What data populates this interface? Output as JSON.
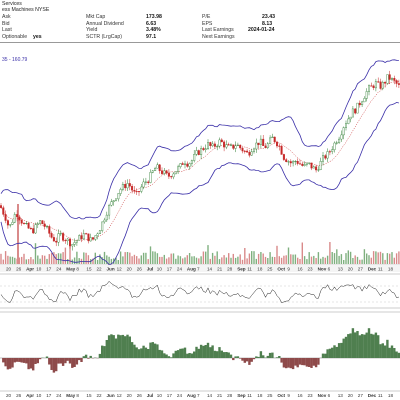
{
  "header": {
    "name_line1": "Services",
    "name_line2": "ess Machines NYSE",
    "ask_label": "Ask",
    "ask_value": "",
    "bid_label": "Bid",
    "bid_value": "",
    "last_label": "Last",
    "last_value": "",
    "optionable_label": "Optionable",
    "optionable_value": "yes",
    "mktcap_label": "Mkt Cap",
    "mktcap_value": "173.98",
    "dividend_label": "Annual Dividend",
    "dividend_value": "6.63",
    "yield_label": "Yield",
    "yield_value": "3.48%",
    "sctr_label": "SCTR (LrgCap)",
    "sctr_value": "97.1",
    "pe_label": "P/E",
    "pe_value": "23.43",
    "eps_label": "EPS",
    "eps_value": "8.13",
    "lastearn_label": "Last Earnings",
    "lastearn_value": "2024-01-24",
    "nextearn_label": "Next Earnings",
    "nextearn_value": "",
    "bb_label": "35 - 160.79"
  },
  "colors": {
    "up": "#2e7d32",
    "down": "#c62828",
    "band": "#3a2fa8",
    "ma": "#c62828",
    "vol_up": "#7fb07f",
    "vol_down": "#d98a8a",
    "osc_up": "#4f7f4f",
    "osc_down": "#8e4a4a"
  },
  "chart_data": {
    "type": "candlestick",
    "x_axis_labels": [
      "20",
      "26",
      "Apr",
      "10",
      "17",
      "24",
      "May",
      "8",
      "15",
      "22",
      "Jun",
      "12",
      "20",
      "26",
      "Jul",
      "10",
      "17",
      "24",
      "Aug",
      "7",
      "14",
      "21",
      "28",
      "Sep",
      "11",
      "18",
      "25",
      "Oct",
      "9",
      "16",
      "23",
      "Nov",
      "6",
      "13",
      "20",
      "27",
      "Dec",
      "11",
      "18"
    ],
    "price_path": [
      [
        0,
        128
      ],
      [
        3,
        126
      ],
      [
        6,
        124
      ],
      [
        9,
        121
      ],
      [
        12,
        123
      ],
      [
        16,
        126
      ],
      [
        20,
        124
      ],
      [
        24,
        122
      ],
      [
        28,
        121
      ],
      [
        32,
        120
      ],
      [
        35,
        121
      ],
      [
        40,
        123
      ],
      [
        44,
        122
      ],
      [
        48,
        120
      ],
      [
        52,
        118
      ],
      [
        56,
        117
      ],
      [
        60,
        119
      ],
      [
        64,
        118
      ],
      [
        68,
        117
      ],
      [
        72,
        116
      ],
      [
        76,
        117
      ],
      [
        80,
        118
      ],
      [
        84,
        119
      ],
      [
        88,
        118
      ],
      [
        92,
        117
      ],
      [
        96,
        119
      ],
      [
        100,
        121
      ],
      [
        104,
        124
      ],
      [
        108,
        127
      ],
      [
        112,
        129
      ],
      [
        116,
        131
      ],
      [
        120,
        133
      ],
      [
        124,
        134
      ],
      [
        128,
        135
      ],
      [
        132,
        133
      ],
      [
        136,
        131
      ],
      [
        140,
        133
      ],
      [
        144,
        135
      ],
      [
        148,
        136
      ],
      [
        152,
        138
      ],
      [
        156,
        140
      ],
      [
        160,
        139
      ],
      [
        164,
        138
      ],
      [
        168,
        137
      ],
      [
        172,
        138
      ],
      [
        176,
        139
      ],
      [
        180,
        140
      ],
      [
        184,
        142
      ],
      [
        188,
        141
      ],
      [
        192,
        142
      ],
      [
        196,
        144
      ],
      [
        200,
        145
      ],
      [
        204,
        146
      ],
      [
        208,
        147
      ],
      [
        212,
        146
      ],
      [
        216,
        147
      ],
      [
        220,
        148
      ],
      [
        224,
        147
      ],
      [
        228,
        146
      ],
      [
        232,
        146
      ],
      [
        236,
        147
      ],
      [
        240,
        146
      ],
      [
        244,
        145
      ],
      [
        248,
        144
      ],
      [
        252,
        146
      ],
      [
        256,
        147
      ],
      [
        260,
        148
      ],
      [
        264,
        146
      ],
      [
        268,
        147
      ],
      [
        272,
        149
      ],
      [
        276,
        148
      ],
      [
        280,
        146
      ],
      [
        284,
        143
      ],
      [
        288,
        142
      ],
      [
        292,
        141
      ],
      [
        296,
        142
      ],
      [
        300,
        141
      ],
      [
        304,
        140
      ],
      [
        308,
        141
      ],
      [
        312,
        140
      ],
      [
        316,
        139
      ],
      [
        320,
        141
      ],
      [
        324,
        143
      ],
      [
        328,
        144
      ],
      [
        332,
        146
      ],
      [
        336,
        148
      ],
      [
        340,
        150
      ],
      [
        344,
        153
      ],
      [
        348,
        155
      ],
      [
        352,
        157
      ],
      [
        356,
        158
      ],
      [
        360,
        160
      ],
      [
        364,
        162
      ],
      [
        368,
        164
      ],
      [
        372,
        165
      ],
      [
        376,
        166
      ],
      [
        380,
        165
      ],
      [
        384,
        166
      ],
      [
        388,
        168
      ],
      [
        392,
        167
      ],
      [
        396,
        166
      ],
      [
        399,
        165
      ]
    ],
    "y_domain": [
      112,
      172
    ]
  }
}
